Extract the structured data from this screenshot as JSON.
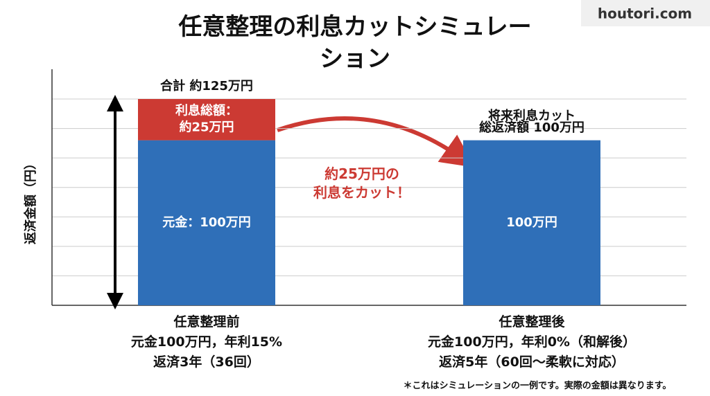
{
  "brand": "houtori.com",
  "chart_data": {
    "type": "stacked-bar",
    "title": "任意整理の利息カットシミュレーション",
    "y_label": "返済金額（円）",
    "categories": [
      "任意整理前",
      "任意整理後"
    ],
    "category_details": [
      [
        "元金100万円，年利15%",
        "返済3年（36回）"
      ],
      [
        "元金100万円，年利0%（和解後）",
        "返済5年（60回〜柔軟に対応）"
      ]
    ],
    "series": [
      {
        "color": "#2f6fb8",
        "values": [
          100,
          100
        ],
        "value_labels": [
          "元金：100万円",
          "100万円"
        ]
      },
      {
        "color": "#cc3a33",
        "values": [
          25,
          null
        ],
        "value_labels": [
          "利息総額：\n約25万円",
          null
        ]
      }
    ],
    "ylim": [
      0,
      125
    ],
    "annotations": {
      "total_before": "合計 約125万円",
      "future_cut": "将来利息カット",
      "total_after": "総返済額 100万円",
      "arrow_text": "約25万円の\n利息をカット！",
      "footnote": "＊これはシミュレーションの一例です。実際の金額は異なります。"
    }
  }
}
